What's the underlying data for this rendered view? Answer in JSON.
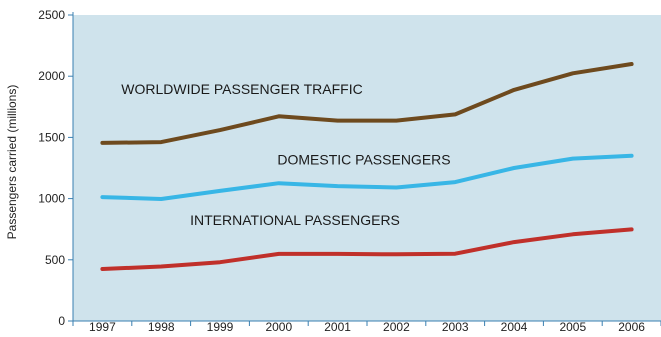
{
  "chart_data": {
    "type": "line",
    "title": "",
    "xlabel": "",
    "ylabel": "Passengers carried (millions)",
    "categories": [
      "1997",
      "1998",
      "1999",
      "2000",
      "2001",
      "2002",
      "2003",
      "2004",
      "2005",
      "2006"
    ],
    "ylim": [
      0,
      2500
    ],
    "yticks": [
      "0",
      "500",
      "1000",
      "1500",
      "2000",
      "2500"
    ],
    "grid": false,
    "background_color": "#cfe3ec",
    "series": [
      {
        "name": "WORLDWIDE PASSENGER TRAFFIC",
        "color": "#6e4a1e",
        "values": [
          1455,
          1462,
          1560,
          1672,
          1637,
          1637,
          1688,
          1888,
          2024,
          2100
        ]
      },
      {
        "name": "DOMESTIC PASSENGERS",
        "color": "#38b6e6",
        "values": [
          1012,
          997,
          1063,
          1126,
          1102,
          1091,
          1135,
          1250,
          1327,
          1350
        ]
      },
      {
        "name": "INTERNATIONAL PASSENGERS",
        "color": "#c0302a",
        "values": [
          425,
          445,
          480,
          548,
          548,
          545,
          550,
          645,
          708,
          748
        ]
      }
    ]
  }
}
